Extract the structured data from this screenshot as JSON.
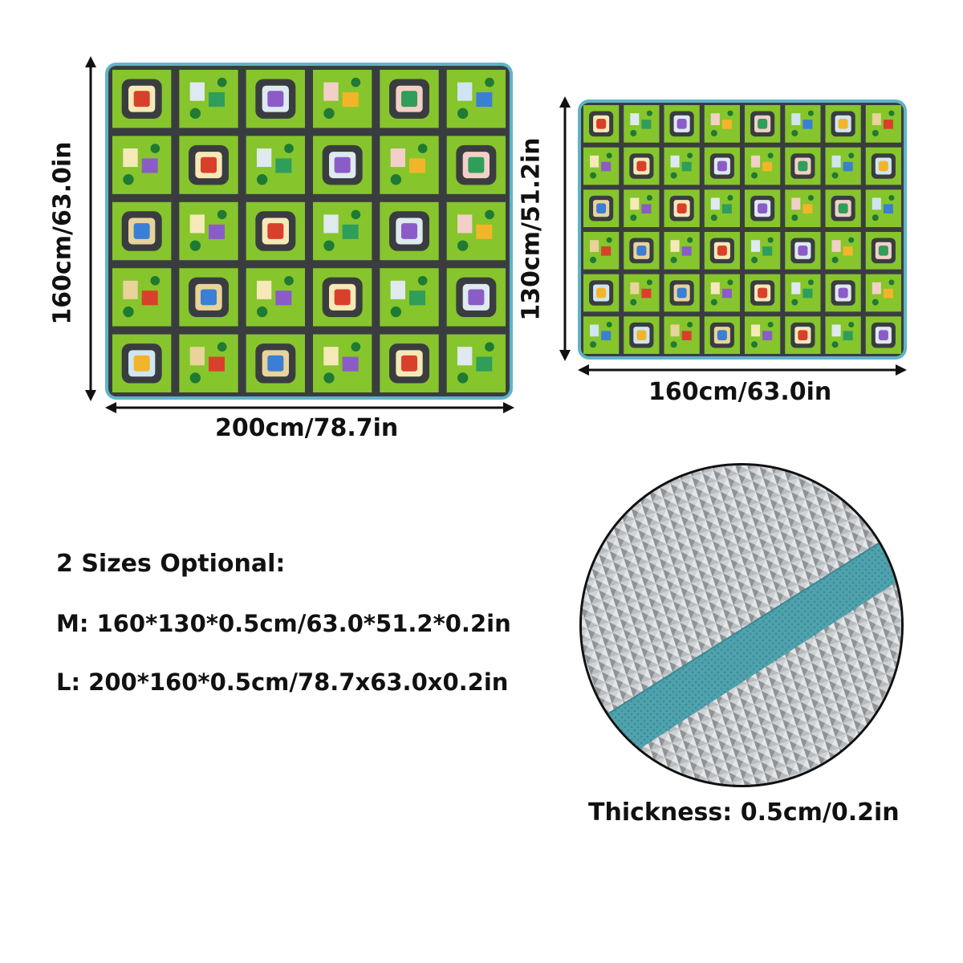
{
  "large_mat": {
    "height_label": "160cm/63.0in",
    "width_label": "200cm/78.7in"
  },
  "medium_mat": {
    "height_label": "130cm/51.2in",
    "width_label": "160cm/63.0in"
  },
  "specs": {
    "heading": "2 Sizes Optional:",
    "size_m": "M: 160*130*0.5cm/63.0*51.2*0.2in",
    "size_l": "L: 200*160*0.5cm/78.7x63.0x0.2in"
  },
  "thickness": {
    "label": "Thickness: 0.5cm/0.2in"
  },
  "colors": {
    "mat_green": "#86c52c",
    "road": "#3a3d40",
    "edge_binding": "#5fb4c8",
    "foil": "#bfc2c5"
  }
}
